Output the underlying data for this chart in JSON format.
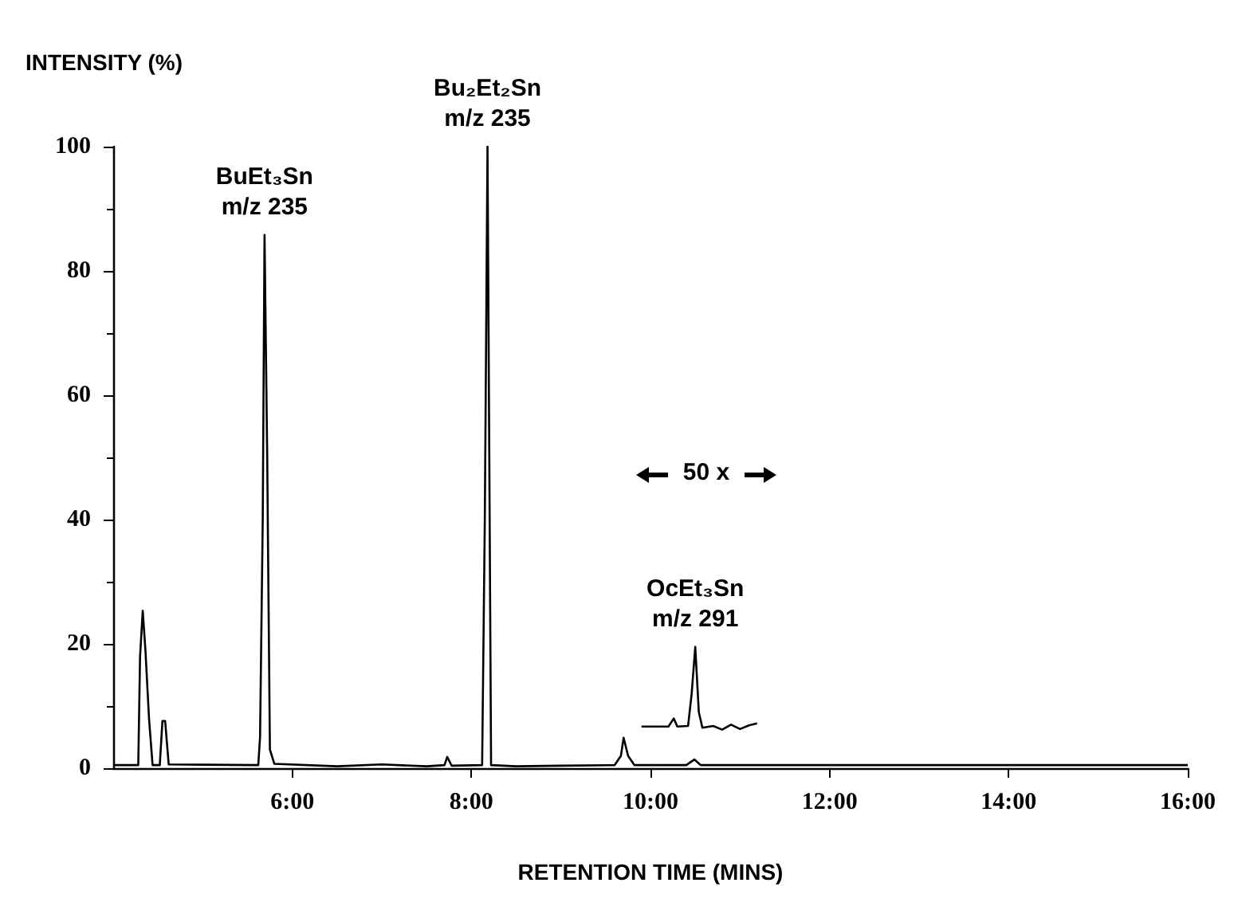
{
  "chart_data": {
    "type": "line",
    "xlabel": "RETENTION TIME (MINS)",
    "ylabel": "INTENSITY (%)",
    "xlim": [
      4,
      16
    ],
    "xticks": [
      {
        "value": 6,
        "label": "6:00"
      },
      {
        "value": 8,
        "label": "8:00"
      },
      {
        "value": 10,
        "label": "10:00"
      },
      {
        "value": 12,
        "label": "12:00"
      },
      {
        "value": 14,
        "label": "14:00"
      },
      {
        "value": 16,
        "label": "16:00"
      }
    ],
    "ylim": [
      0,
      100
    ],
    "yticks": [
      0,
      20,
      40,
      60,
      80,
      100
    ],
    "grid": false,
    "marker": "none",
    "line_style": "solid",
    "series": [
      {
        "color": "#000000",
        "x": [
          4.0,
          4.28,
          4.3,
          4.33,
          4.36,
          4.4,
          4.44,
          4.52,
          4.55,
          4.58,
          4.62,
          5.62,
          5.64,
          5.67,
          5.69,
          5.72,
          5.75,
          5.8,
          6.5,
          7.0,
          7.5,
          7.7,
          7.73,
          7.78,
          8.12,
          8.15,
          8.18,
          8.2,
          8.22,
          8.5,
          9.0,
          9.6,
          9.67,
          9.7,
          9.75,
          9.82,
          10.4,
          10.49,
          10.56,
          12,
          16
        ],
        "values": [
          0.5,
          0.5,
          18,
          25.3,
          19,
          8,
          0.5,
          0.5,
          7.6,
          7.6,
          0.6,
          0.5,
          5,
          40,
          85.8,
          50,
          3,
          0.7,
          0.3,
          0.6,
          0.3,
          0.5,
          1.8,
          0.4,
          0.5,
          40,
          100,
          50,
          0.5,
          0.3,
          0.4,
          0.5,
          2,
          4.9,
          2,
          0.5,
          0.5,
          1.4,
          0.5,
          0.5,
          0.5
        ]
      },
      {
        "color": "#000000",
        "x": [
          9.9,
          10.2,
          10.26,
          10.3,
          10.42,
          10.46,
          10.5,
          10.54,
          10.58,
          10.7,
          10.8,
          10.9,
          11.0,
          11.1,
          11.19
        ],
        "values": [
          6.7,
          6.7,
          8,
          6.7,
          6.8,
          12,
          19.5,
          9,
          6.5,
          6.8,
          6.2,
          7,
          6.3,
          6.9,
          7.2
        ]
      }
    ],
    "annotations": [
      {
        "text": "BuEt₃Sn\nm/z 235",
        "x": 5.69,
        "y": 85.8
      },
      {
        "text": "Bu₂Et₂Sn\nm/z 235",
        "x": 8.18,
        "y": 100
      },
      {
        "text": "OcEt₃Sn\nm/z 291",
        "x": 10.5,
        "y": 19.5
      },
      "50 x"
    ]
  }
}
